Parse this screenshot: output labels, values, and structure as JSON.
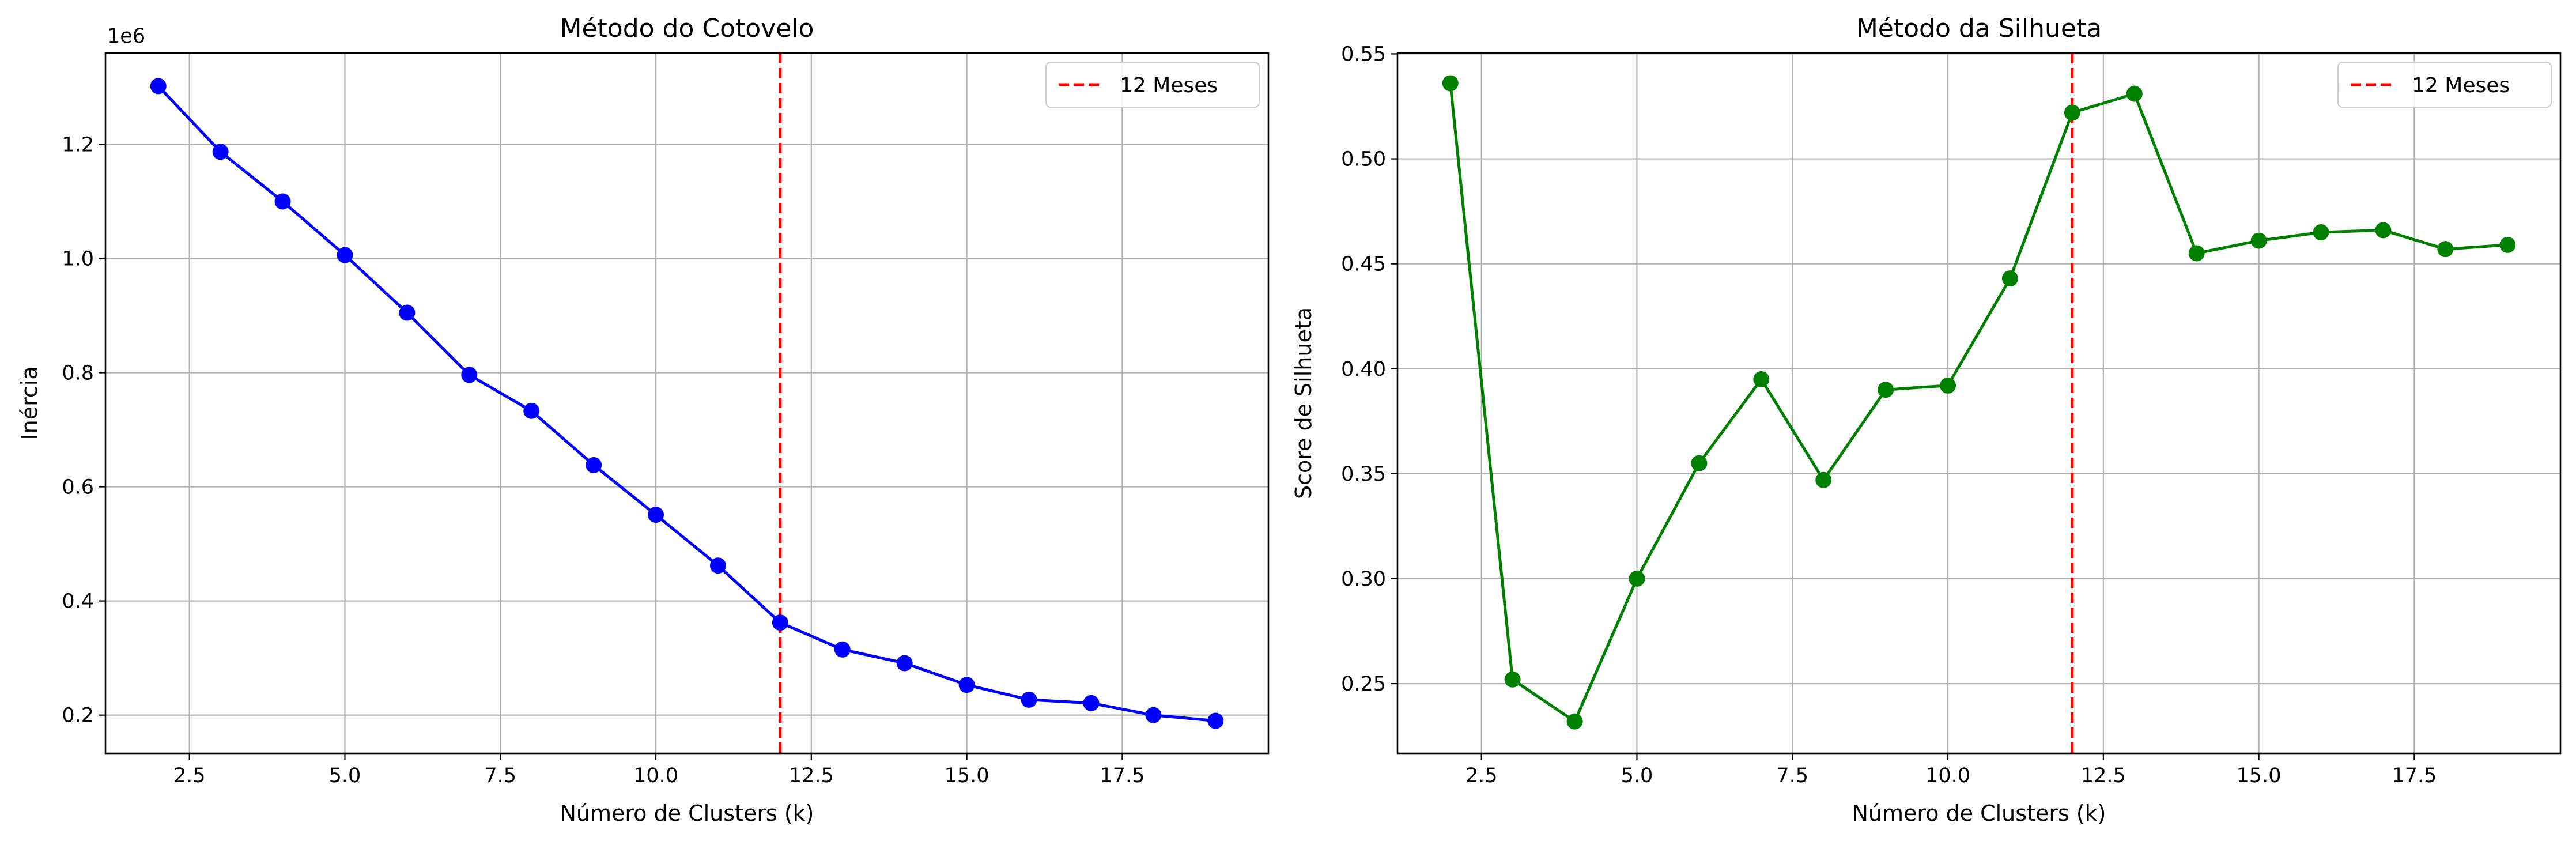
{
  "chart_data": [
    {
      "type": "line",
      "title": "Método do Cotovelo",
      "xlabel": "Número de Clusters (k)",
      "ylabel": "Inércia",
      "y_offset_label": "1e6",
      "x": [
        2,
        3,
        4,
        5,
        6,
        7,
        8,
        9,
        10,
        11,
        12,
        13,
        14,
        15,
        16,
        17,
        18,
        19
      ],
      "series": [
        {
          "color": "#0000ff",
          "marker": "circle",
          "values": [
            1302000,
            1187000,
            1100000,
            1006000,
            905000,
            796000,
            733000,
            638000,
            551000,
            462000,
            362000,
            315000,
            291000,
            253000,
            227000,
            221000,
            200000,
            190000
          ]
        }
      ],
      "xlim": [
        1.15,
        19.85
      ],
      "ylim": [
        133000,
        1360000
      ],
      "xticks": [
        2.5,
        5.0,
        7.5,
        10.0,
        12.5,
        15.0,
        17.5
      ],
      "xtick_labels": [
        "2.5",
        "5.0",
        "7.5",
        "10.0",
        "12.5",
        "15.0",
        "17.5"
      ],
      "yticks": [
        200000,
        400000,
        600000,
        800000,
        1000000,
        1200000
      ],
      "ytick_labels": [
        "0.2",
        "0.4",
        "0.6",
        "0.8",
        "1.0",
        "1.2"
      ],
      "reference_line": {
        "x": 12,
        "color": "#ff0000",
        "style": "dashed",
        "label": "12 Meses"
      },
      "grid": true,
      "legend": "upper right"
    },
    {
      "type": "line",
      "title": "Método da Silhueta",
      "xlabel": "Número de Clusters (k)",
      "ylabel": "Score de Silhueta",
      "x": [
        2,
        3,
        4,
        5,
        6,
        7,
        8,
        9,
        10,
        11,
        12,
        13,
        14,
        15,
        16,
        17,
        18,
        19
      ],
      "series": [
        {
          "color": "#008000",
          "marker": "circle",
          "values": [
            0.536,
            0.252,
            0.232,
            0.3,
            0.355,
            0.395,
            0.347,
            0.39,
            0.392,
            0.443,
            0.522,
            0.531,
            0.455,
            0.461,
            0.465,
            0.466,
            0.457,
            0.459
          ]
        }
      ],
      "xlim": [
        1.15,
        19.85
      ],
      "ylim": [
        0.2168,
        0.5504
      ],
      "xticks": [
        2.5,
        5.0,
        7.5,
        10.0,
        12.5,
        15.0,
        17.5
      ],
      "xtick_labels": [
        "2.5",
        "5.0",
        "7.5",
        "10.0",
        "12.5",
        "15.0",
        "17.5"
      ],
      "yticks": [
        0.25,
        0.3,
        0.35,
        0.4,
        0.45,
        0.5,
        0.55
      ],
      "ytick_labels": [
        "0.25",
        "0.30",
        "0.35",
        "0.40",
        "0.45",
        "0.50",
        "0.55"
      ],
      "reference_line": {
        "x": 12,
        "color": "#ff0000",
        "style": "dashed",
        "label": "12 Meses"
      },
      "grid": true,
      "legend": "upper right"
    }
  ]
}
